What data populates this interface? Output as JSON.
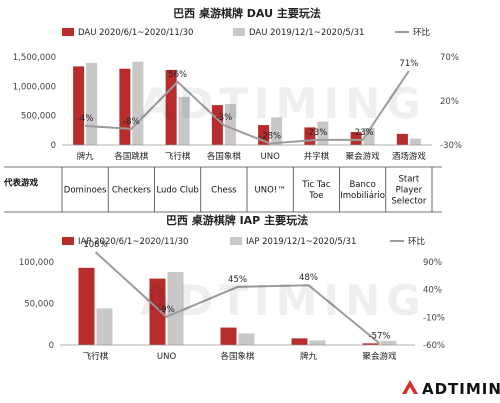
{
  "colors": {
    "series_2020": "#b82c2c",
    "series_2019": "#c8c8c8",
    "ratio_line": "#9c9c9c",
    "brand_accent": "#d32f2f"
  },
  "brand": {
    "name": "ADTIMING",
    "icon": "adtiming-logo-icon"
  },
  "chart_data": [
    {
      "type": "bar",
      "title": "巴西 桌游棋牌 DAU 主要玩法",
      "categories": [
        "牌九",
        "各国跳棋",
        "飞行棋",
        "各国象棋",
        "UNO",
        "井字棋",
        "聚会游戏",
        "酒场游戏"
      ],
      "series": [
        {
          "name": "DAU 2020/6/1~2020/11/30",
          "values": [
            1340000,
            1300000,
            1280000,
            680000,
            340000,
            300000,
            220000,
            190000
          ]
        },
        {
          "name": "DAU 2019/12/1~2020/5/31",
          "values": [
            1400000,
            1420000,
            820000,
            700000,
            470000,
            400000,
            290000,
            110000
          ]
        }
      ],
      "line": {
        "name": "环比",
        "values": [
          -4,
          -8,
          56,
          -3,
          -28,
          -23,
          -23,
          71
        ],
        "labels": [
          "-4%",
          "-8%",
          "56%",
          "-3%",
          "-28%",
          "-23%",
          "-23%",
          "71%"
        ]
      },
      "ylim": [
        0,
        1500000
      ],
      "yticks": [
        "0",
        "500,000",
        "1,000,000",
        "1,500,000"
      ],
      "y2lim": [
        -30,
        90
      ],
      "y2ticks": [
        "-30%",
        "20%",
        "70%"
      ],
      "legend_position": "top",
      "grid": false,
      "representative_games": {
        "header": "代表游戏",
        "items": [
          [
            "Dominoes"
          ],
          [
            "Checkers"
          ],
          [
            "Ludo Club"
          ],
          [
            "Chess"
          ],
          [
            "UNO!™"
          ],
          [
            "Tic Tac",
            "Toe"
          ],
          [
            "Banco",
            "Imobiliário"
          ],
          [
            "Start",
            "Player",
            "Selector"
          ]
        ]
      }
    },
    {
      "type": "bar",
      "title": "巴西 桌游棋牌 IAP 主要玩法",
      "categories": [
        "飞行棋",
        "UNO",
        "各国象棋",
        "牌九",
        "聚会游戏"
      ],
      "series": [
        {
          "name": "IAP 2020/6/1~2020/11/30",
          "values": [
            93000,
            80000,
            21000,
            8000,
            2000
          ]
        },
        {
          "name": "IAP 2019/12/1~2020/5/31",
          "values": [
            44000,
            88000,
            14000,
            5500,
            5000
          ]
        }
      ],
      "line": {
        "name": "环比",
        "values": [
          108,
          -9,
          45,
          48,
          -57
        ],
        "labels": [
          "108%",
          "-9%",
          "45%",
          "48%",
          "-57%"
        ]
      },
      "ylim": [
        0,
        100000
      ],
      "yticks": [
        "0",
        "50,000",
        "100,000"
      ],
      "y2lim": [
        -60,
        90
      ],
      "y2ticks": [
        "-60%",
        "-10%",
        "40%",
        "90%"
      ],
      "legend_position": "top",
      "grid": false
    }
  ]
}
